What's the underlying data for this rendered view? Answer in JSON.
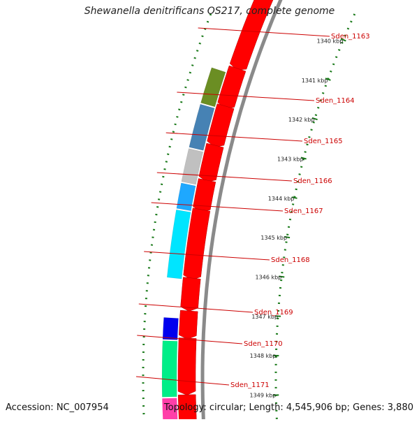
{
  "title": "Shewanella denitrificans OS217, complete genome",
  "accession": "Accession: NC_007954",
  "summary": "Topology: circular; Length: 4,545,906 bp; Genes: 3,880",
  "colors": {
    "backbone": "#8a8a8a",
    "forward": "#ff0000",
    "scale": "#1a7a1a",
    "label": "#cc0000"
  },
  "scale_ticks": [
    "1340 kbp",
    "1341 kbp",
    "1342 kbp",
    "1343 kbp",
    "1344 kbp",
    "1345 kbp",
    "1346 kbp",
    "1347 kbp",
    "1348 kbp",
    "1349 kbp"
  ],
  "genes": [
    {
      "name": "Sden_1163",
      "color": "#ff0000"
    },
    {
      "name": "Sden_1164",
      "color": "#6b8e23"
    },
    {
      "name": "Sden_1165",
      "color": "#4682b4"
    },
    {
      "name": "Sden_1166",
      "color": "#c0c0c0"
    },
    {
      "name": "Sden_1167",
      "color": "#1ea8ff"
    },
    {
      "name": "Sden_1168",
      "color": "#00e5ff"
    },
    {
      "name": "Sden_1169",
      "color": "#ff0000"
    },
    {
      "name": "Sden_1170",
      "color": "#0000ee"
    },
    {
      "name": "Sden_1171",
      "color": "#00ee88"
    }
  ]
}
